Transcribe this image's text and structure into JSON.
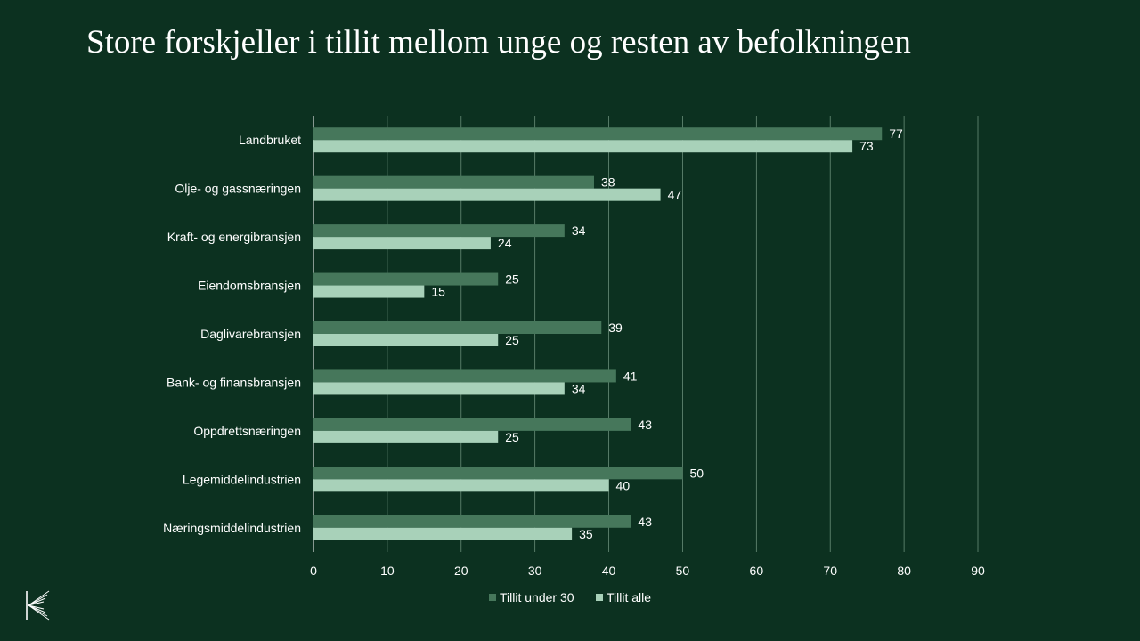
{
  "slide": {
    "title": "Store forskjeller i tillit mellom unge og resten av befolkningen"
  },
  "colors": {
    "background": "#0c3120",
    "series_dark": "#46775b",
    "series_light": "#a8d1b9",
    "gridline": "#8fb39d",
    "text": "#ffffff"
  },
  "logo": {
    "icon": "company-logo-icon"
  },
  "chart_data": {
    "type": "bar",
    "orientation": "horizontal",
    "title": "Store forskjeller i tillit mellom unge og resten av befolkningen",
    "categories": [
      "Landbruket",
      "Olje- og gassnæringen",
      "Kraft- og energibransjen",
      "Eiendomsbransjen",
      "Daglivarebransjen",
      "Bank- og finansbransjen",
      "Oppdrettsnæringen",
      "Legemiddelindustrien",
      "Næringsmiddelindustrien"
    ],
    "series": [
      {
        "name": "Tillit under 30",
        "values": [
          77,
          38,
          34,
          25,
          39,
          41,
          43,
          50,
          43
        ]
      },
      {
        "name": "Tillit alle",
        "values": [
          73,
          47,
          24,
          15,
          25,
          34,
          25,
          40,
          35
        ]
      }
    ],
    "xlim": [
      0,
      90
    ],
    "xticks": [
      0,
      10,
      20,
      30,
      40,
      50,
      60,
      70,
      80,
      90
    ],
    "grid": true,
    "data_labels": true,
    "legend_position": "bottom"
  }
}
